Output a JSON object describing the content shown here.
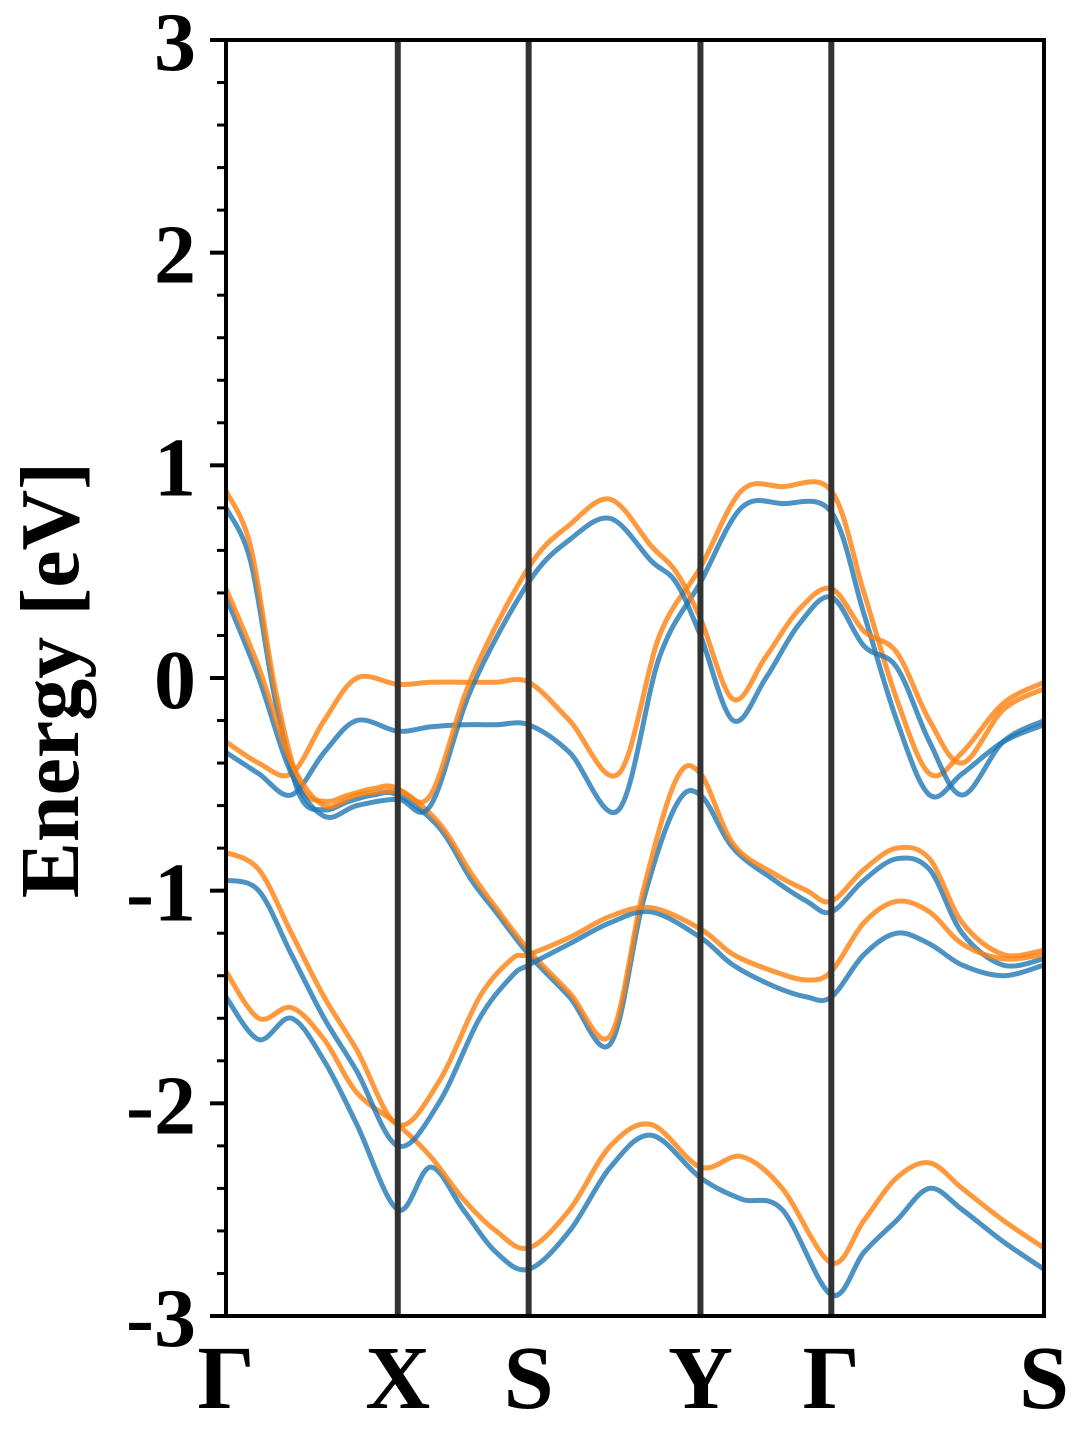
{
  "chart_data": {
    "type": "line",
    "title": "",
    "xlabel": "",
    "ylabel": "Energy [eV]",
    "ylim": [
      -3,
      3
    ],
    "y_ticks": [
      3,
      2,
      1,
      0,
      -1,
      -2,
      -3
    ],
    "y_tick_labels": [
      "3",
      "2",
      "1",
      "0",
      "-1",
      "-2",
      "-3"
    ],
    "kpath_positions": [
      0,
      0.21,
      0.37,
      0.58,
      0.74,
      1.0
    ],
    "kpath_labels": [
      "Γ",
      "X",
      "S",
      "Y",
      "Γ",
      "S"
    ],
    "grid": false,
    "legend": "none",
    "colors": {
      "blue": "#1f77b4",
      "orange": "#ff7f0e",
      "kline": "#333333",
      "axis": "#000000"
    },
    "series": [
      {
        "color": "#1f77b4",
        "x": [
          0,
          0.03,
          0.06,
          0.09,
          0.12,
          0.15,
          0.18,
          0.21,
          0.26,
          0.3,
          0.33,
          0.37,
          0.42,
          0.47,
          0.51,
          0.55,
          0.58,
          0.62,
          0.67,
          0.71,
          0.74,
          0.78,
          0.82,
          0.86,
          0.9,
          0.95,
          1.0
        ],
        "y": [
          0.8,
          0.55,
          -0.1,
          -0.55,
          -0.62,
          -0.58,
          -0.55,
          -0.55,
          -0.7,
          -0.95,
          -1.1,
          -1.3,
          -1.5,
          -1.72,
          -1.05,
          -0.6,
          -0.55,
          -0.8,
          -0.95,
          -1.05,
          -1.1,
          -0.95,
          -0.85,
          -0.9,
          -1.2,
          -1.35,
          -1.32
        ]
      },
      {
        "color": "#ff7f0e",
        "x": [
          0,
          0.03,
          0.06,
          0.09,
          0.12,
          0.15,
          0.18,
          0.21,
          0.26,
          0.3,
          0.33,
          0.37,
          0.42,
          0.47,
          0.51,
          0.55,
          0.58,
          0.62,
          0.67,
          0.71,
          0.74,
          0.78,
          0.82,
          0.86,
          0.9,
          0.95,
          1.0
        ],
        "y": [
          0.88,
          0.62,
          -0.05,
          -0.5,
          -0.58,
          -0.55,
          -0.52,
          -0.52,
          -0.68,
          -0.92,
          -1.08,
          -1.28,
          -1.48,
          -1.68,
          -1.0,
          -0.48,
          -0.45,
          -0.78,
          -0.92,
          -1.0,
          -1.05,
          -0.9,
          -0.8,
          -0.85,
          -1.15,
          -1.3,
          -1.28
        ]
      },
      {
        "color": "#1f77b4",
        "x": [
          0,
          0.04,
          0.08,
          0.12,
          0.16,
          0.21,
          0.25,
          0.29,
          0.33,
          0.37,
          0.42,
          0.48,
          0.53,
          0.58,
          0.63,
          0.68,
          0.74,
          0.78,
          0.82,
          0.86,
          0.9,
          0.95,
          1.0
        ],
        "y": [
          -0.35,
          -0.45,
          -0.55,
          -0.35,
          -0.2,
          -0.25,
          -0.23,
          -0.22,
          -0.22,
          -0.22,
          -0.35,
          -0.62,
          0.1,
          0.45,
          0.8,
          0.82,
          0.78,
          0.3,
          -0.2,
          -0.55,
          -0.45,
          -0.3,
          -0.22
        ]
      },
      {
        "color": "#ff7f0e",
        "x": [
          0,
          0.04,
          0.08,
          0.12,
          0.16,
          0.21,
          0.25,
          0.29,
          0.33,
          0.37,
          0.42,
          0.48,
          0.53,
          0.58,
          0.63,
          0.68,
          0.74,
          0.78,
          0.82,
          0.86,
          0.9,
          0.95,
          1.0
        ],
        "y": [
          -0.3,
          -0.4,
          -0.45,
          -0.2,
          0.0,
          -0.03,
          -0.02,
          -0.02,
          -0.02,
          -0.02,
          -0.2,
          -0.45,
          0.2,
          0.52,
          0.88,
          0.9,
          0.88,
          0.4,
          -0.1,
          -0.45,
          -0.35,
          -0.12,
          -0.02
        ]
      },
      {
        "color": "#1f77b4",
        "x": [
          0,
          0.04,
          0.08,
          0.12,
          0.16,
          0.21,
          0.25,
          0.3,
          0.37,
          0.42,
          0.47,
          0.52,
          0.55,
          0.58,
          0.62,
          0.66,
          0.7,
          0.74,
          0.78,
          0.82,
          0.86,
          0.9,
          0.95,
          1.0
        ],
        "y": [
          0.38,
          0.0,
          -0.45,
          -0.65,
          -0.6,
          -0.57,
          -0.6,
          -0.05,
          0.45,
          0.65,
          0.75,
          0.55,
          0.45,
          0.2,
          -0.2,
          0.0,
          0.25,
          0.38,
          0.15,
          0.05,
          -0.3,
          -0.55,
          -0.3,
          -0.2
        ]
      },
      {
        "color": "#ff7f0e",
        "x": [
          0,
          0.04,
          0.08,
          0.12,
          0.16,
          0.21,
          0.25,
          0.3,
          0.37,
          0.42,
          0.47,
          0.52,
          0.55,
          0.58,
          0.62,
          0.66,
          0.7,
          0.74,
          0.78,
          0.82,
          0.86,
          0.9,
          0.95,
          1.0
        ],
        "y": [
          0.42,
          0.05,
          -0.4,
          -0.6,
          -0.55,
          -0.53,
          -0.55,
          0.0,
          0.52,
          0.72,
          0.84,
          0.62,
          0.5,
          0.28,
          -0.1,
          0.1,
          0.32,
          0.42,
          0.22,
          0.12,
          -0.2,
          -0.4,
          -0.15,
          -0.05
        ]
      },
      {
        "color": "#1f77b4",
        "x": [
          0,
          0.04,
          0.08,
          0.12,
          0.16,
          0.21,
          0.25,
          0.29,
          0.33,
          0.37,
          0.42,
          0.47,
          0.52,
          0.58,
          0.63,
          0.68,
          0.74,
          0.78,
          0.82,
          0.86,
          0.9,
          0.95,
          1.0
        ],
        "y": [
          -1.5,
          -1.7,
          -1.6,
          -1.8,
          -2.1,
          -2.5,
          -2.3,
          -2.5,
          -2.7,
          -2.78,
          -2.6,
          -2.3,
          -2.15,
          -2.35,
          -2.45,
          -2.5,
          -2.9,
          -2.7,
          -2.55,
          -2.4,
          -2.5,
          -2.65,
          -2.78
        ]
      },
      {
        "color": "#ff7f0e",
        "x": [
          0,
          0.04,
          0.08,
          0.12,
          0.16,
          0.21,
          0.25,
          0.29,
          0.33,
          0.37,
          0.42,
          0.47,
          0.52,
          0.58,
          0.63,
          0.68,
          0.74,
          0.78,
          0.82,
          0.86,
          0.9,
          0.95,
          1.0
        ],
        "y": [
          -1.38,
          -1.6,
          -1.55,
          -1.7,
          -1.95,
          -2.1,
          -2.25,
          -2.45,
          -2.6,
          -2.68,
          -2.5,
          -2.2,
          -2.1,
          -2.3,
          -2.25,
          -2.4,
          -2.75,
          -2.55,
          -2.35,
          -2.28,
          -2.4,
          -2.55,
          -2.68
        ]
      },
      {
        "color": "#1f77b4",
        "x": [
          0,
          0.04,
          0.08,
          0.12,
          0.16,
          0.21,
          0.26,
          0.31,
          0.35,
          0.37,
          0.42,
          0.47,
          0.52,
          0.58,
          0.62,
          0.67,
          0.71,
          0.74,
          0.78,
          0.82,
          0.86,
          0.9,
          0.95,
          1.0
        ],
        "y": [
          -0.95,
          -1.0,
          -1.3,
          -1.6,
          -1.85,
          -2.2,
          -2.0,
          -1.6,
          -1.4,
          -1.35,
          -1.25,
          -1.15,
          -1.1,
          -1.22,
          -1.35,
          -1.45,
          -1.5,
          -1.5,
          -1.3,
          -1.2,
          -1.25,
          -1.35,
          -1.4,
          -1.35
        ]
      },
      {
        "color": "#ff7f0e",
        "x": [
          0,
          0.04,
          0.08,
          0.12,
          0.16,
          0.21,
          0.26,
          0.31,
          0.35,
          0.37,
          0.42,
          0.47,
          0.52,
          0.58,
          0.62,
          0.67,
          0.71,
          0.74,
          0.78,
          0.82,
          0.86,
          0.9,
          0.95,
          1.0
        ],
        "y": [
          -0.82,
          -0.9,
          -1.2,
          -1.5,
          -1.75,
          -2.1,
          -1.9,
          -1.5,
          -1.32,
          -1.3,
          -1.22,
          -1.12,
          -1.08,
          -1.18,
          -1.3,
          -1.38,
          -1.42,
          -1.38,
          -1.15,
          -1.05,
          -1.1,
          -1.25,
          -1.32,
          -1.3
        ]
      }
    ]
  }
}
